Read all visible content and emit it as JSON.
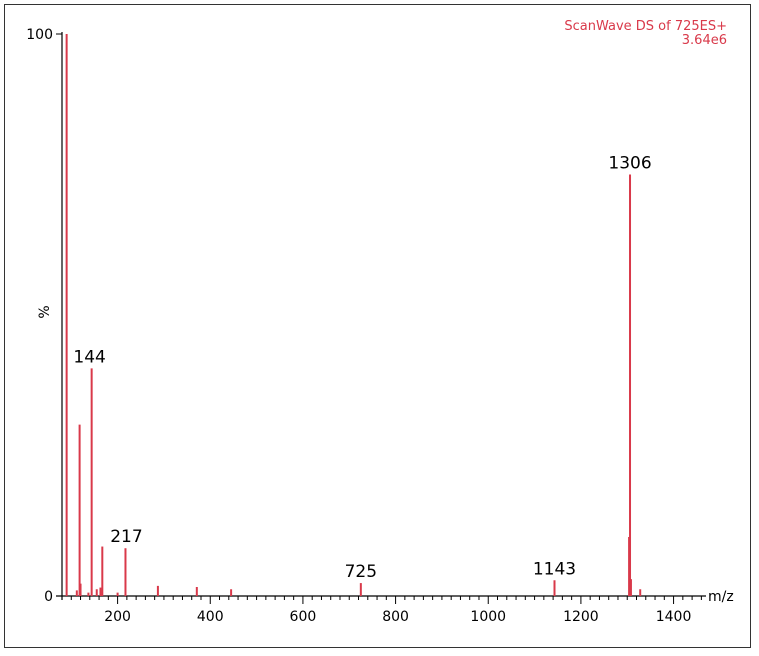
{
  "chart_data": {
    "type": "bar",
    "title": "",
    "scan_header": {
      "line1": "ScanWave DS of  725ES+",
      "line2": "3.64e6"
    },
    "xlabel": "m/z",
    "ylabel": "%",
    "xlim": [
      80,
      1470
    ],
    "ylim": [
      0,
      100
    ],
    "x_ticks": [
      200,
      400,
      600,
      800,
      1000,
      1200,
      1400
    ],
    "x_minor_step": 20,
    "y_ticks": [
      0,
      100
    ],
    "grid": false,
    "peak_color": "#d9394a",
    "peaks": [
      {
        "mz": 90,
        "intensity": 100
      },
      {
        "mz": 112,
        "intensity": 1
      },
      {
        "mz": 118,
        "intensity": 30.5
      },
      {
        "mz": 120,
        "intensity": 2.2
      },
      {
        "mz": 137,
        "intensity": 0.6
      },
      {
        "mz": 144,
        "intensity": 40.5,
        "label": "144"
      },
      {
        "mz": 155,
        "intensity": 1.2
      },
      {
        "mz": 163,
        "intensity": 1.5
      },
      {
        "mz": 167,
        "intensity": 8.8
      },
      {
        "mz": 200,
        "intensity": 0.6
      },
      {
        "mz": 217,
        "intensity": 8.5,
        "label": "217"
      },
      {
        "mz": 287,
        "intensity": 1.8
      },
      {
        "mz": 371,
        "intensity": 1.6
      },
      {
        "mz": 445,
        "intensity": 1.2
      },
      {
        "mz": 725,
        "intensity": 2.3,
        "label": "725"
      },
      {
        "mz": 1143,
        "intensity": 2.8,
        "label": "1143"
      },
      {
        "mz": 1304,
        "intensity": 10.5
      },
      {
        "mz": 1306,
        "intensity": 75,
        "label": "1306"
      },
      {
        "mz": 1308,
        "intensity": 3
      },
      {
        "mz": 1328,
        "intensity": 1.2
      }
    ]
  }
}
